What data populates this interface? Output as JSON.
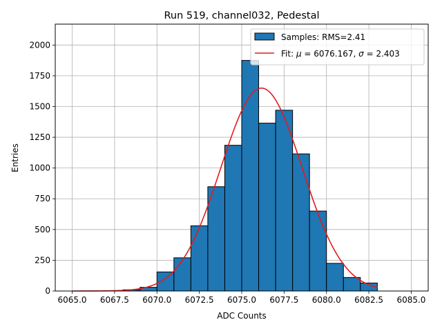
{
  "chart_data": {
    "type": "bar",
    "title": "Run 519, channel032, Pedestal",
    "xlabel": "ADC Counts",
    "ylabel": "Entries",
    "xlim": [
      6064.0,
      6086.0
    ],
    "ylim": [
      0,
      2170
    ],
    "grid": true,
    "legend_position": "top-right",
    "x_ticks": [
      6065.0,
      6067.5,
      6070.0,
      6072.5,
      6075.0,
      6077.5,
      6080.0,
      6082.5,
      6085.0
    ],
    "x_tick_labels": [
      "6065.0",
      "6067.5",
      "6070.0",
      "6072.5",
      "6075.0",
      "6077.5",
      "6080.0",
      "6082.5",
      "6085.0"
    ],
    "y_ticks": [
      0,
      250,
      500,
      750,
      1000,
      1250,
      1500,
      1750,
      2000
    ],
    "y_tick_labels": [
      "0",
      "250",
      "500",
      "750",
      "1000",
      "1250",
      "1500",
      "1750",
      "2000"
    ],
    "bars": {
      "name": "Samples: RMS=2.41",
      "color": "#1f77b4",
      "edge_color": "#000000",
      "bins": [
        {
          "x0": 6065,
          "x1": 6066,
          "value": 0
        },
        {
          "x0": 6066,
          "x1": 6067,
          "value": 0
        },
        {
          "x0": 6067,
          "x1": 6068,
          "value": 3
        },
        {
          "x0": 6068,
          "x1": 6069,
          "value": 10
        },
        {
          "x0": 6069,
          "x1": 6070,
          "value": 30
        },
        {
          "x0": 6070,
          "x1": 6071,
          "value": 155
        },
        {
          "x0": 6071,
          "x1": 6072,
          "value": 270
        },
        {
          "x0": 6072,
          "x1": 6073,
          "value": 530
        },
        {
          "x0": 6073,
          "x1": 6074,
          "value": 848
        },
        {
          "x0": 6074,
          "x1": 6075,
          "value": 1185
        },
        {
          "x0": 6075,
          "x1": 6076,
          "value": 1875
        },
        {
          "x0": 6076,
          "x1": 6077,
          "value": 1365
        },
        {
          "x0": 6077,
          "x1": 6078,
          "value": 1470
        },
        {
          "x0": 6078,
          "x1": 6079,
          "value": 1115
        },
        {
          "x0": 6079,
          "x1": 6080,
          "value": 650
        },
        {
          "x0": 6080,
          "x1": 6081,
          "value": 225
        },
        {
          "x0": 6081,
          "x1": 6082,
          "value": 110
        },
        {
          "x0": 6082,
          "x1": 6083,
          "value": 65
        }
      ]
    },
    "fit": {
      "name": "Fit: $\\mu$ = 6076.167, $\\sigma$ = 2.403",
      "label_prefix": "Fit: ",
      "mu_symbol": "μ",
      "mu_text": " = 6076.167, ",
      "sigma_symbol": "σ",
      "sigma_text": " = 2.403",
      "color": "#e41a1c",
      "mu": 6076.167,
      "sigma": 2.403,
      "amplitude": 1650,
      "x_range": [
        6065,
        6083
      ]
    }
  }
}
